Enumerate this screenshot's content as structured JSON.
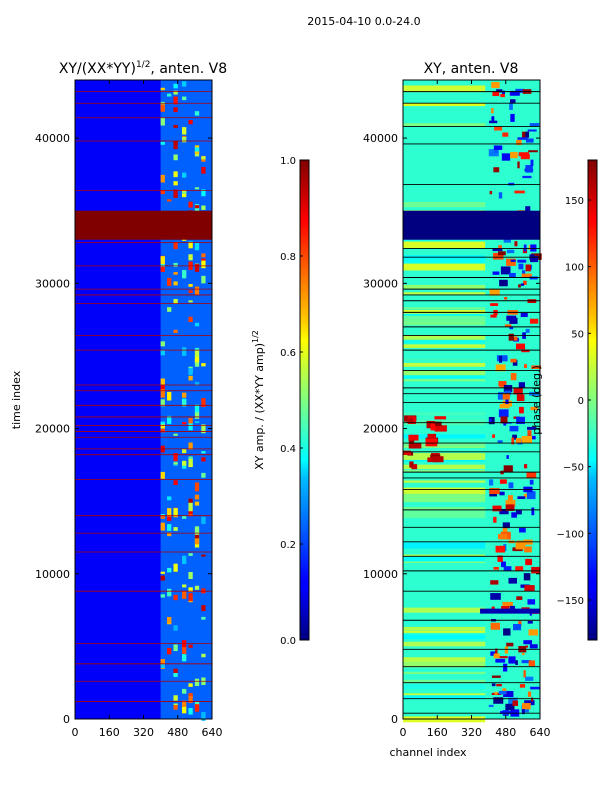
{
  "figure": {
    "suptitle": "2015-04-10 0.0-24.0"
  },
  "chart_data": [
    {
      "type": "heatmap",
      "title_main": "XY/(XX*YY)",
      "title_sup": "1/2",
      "title_rest": ", anten. V8",
      "xlabel": "",
      "ylabel": "time index",
      "xlim": [
        0,
        640
      ],
      "ylim": [
        0,
        44000
      ],
      "xticks": [
        0,
        160,
        320,
        480,
        640
      ],
      "yticks": [
        0,
        10000,
        20000,
        30000,
        40000
      ],
      "colorbar": {
        "label_main": "XY amp. / (XX*YY amp)",
        "label_sup": "1/2",
        "range": [
          0.0,
          1.0
        ],
        "ticks": [
          "0.0",
          "0.2",
          "0.4",
          "0.6",
          "0.8",
          "1.0"
        ],
        "colormap": "jet"
      },
      "notable_bands": [
        {
          "y_from": 33000,
          "y_to": 35000,
          "value": 1.0
        }
      ]
    },
    {
      "type": "heatmap",
      "title_main": "XY, anten. V8",
      "title_sup": "",
      "title_rest": "",
      "xlabel": "channel index",
      "ylabel": "",
      "xlim": [
        0,
        640
      ],
      "ylim": [
        0,
        44000
      ],
      "xticks": [
        0,
        160,
        320,
        480,
        640
      ],
      "yticks": [
        0,
        10000,
        20000,
        30000,
        40000
      ],
      "colorbar": {
        "label_main": "phase (deg.)",
        "label_sup": "",
        "range": [
          -180,
          180
        ],
        "ticks": [
          "−150",
          "−100",
          "−50",
          "0",
          "50",
          "100",
          "150"
        ],
        "colormap": "jet"
      },
      "notable_bands": [
        {
          "y_from": 33000,
          "y_to": 35000,
          "value": -180
        }
      ]
    }
  ]
}
